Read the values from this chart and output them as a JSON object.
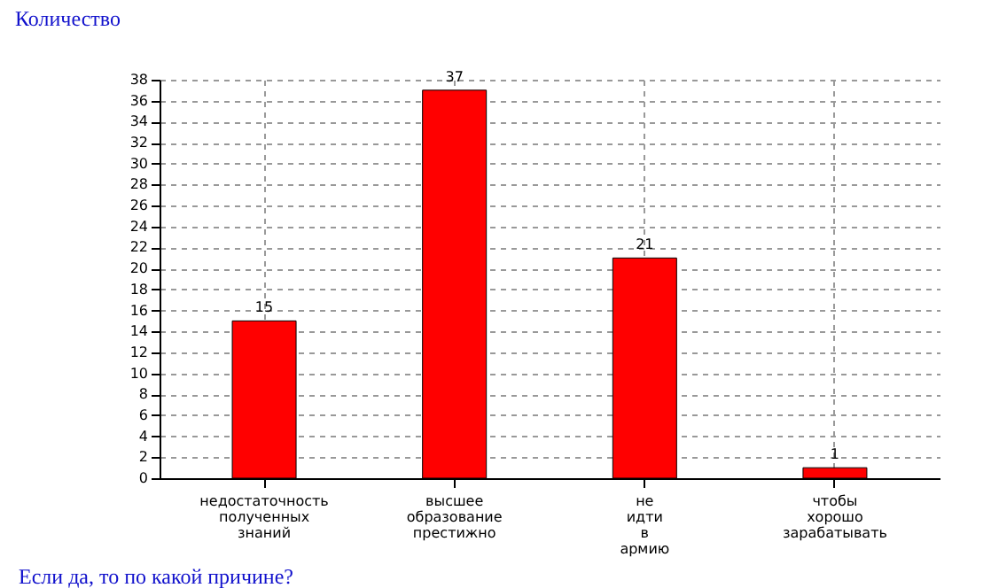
{
  "chart_data": {
    "type": "bar",
    "ylabel": "Количество",
    "xlabel": "Если да, то по какой причине?",
    "categories": [
      "недостаточность полученных знаний",
      "высшее образование престижно",
      "не идти в армию",
      "чтобы хорошо зарабатывать"
    ],
    "values": [
      15,
      37,
      21,
      1
    ],
    "color": "#ff0000",
    "ylim": [
      0,
      38
    ],
    "yticks": [
      0,
      2,
      4,
      6,
      8,
      10,
      12,
      14,
      16,
      18,
      20,
      22,
      24,
      26,
      28,
      30,
      32,
      34,
      36,
      38
    ],
    "grid": true,
    "data_labels": true
  }
}
